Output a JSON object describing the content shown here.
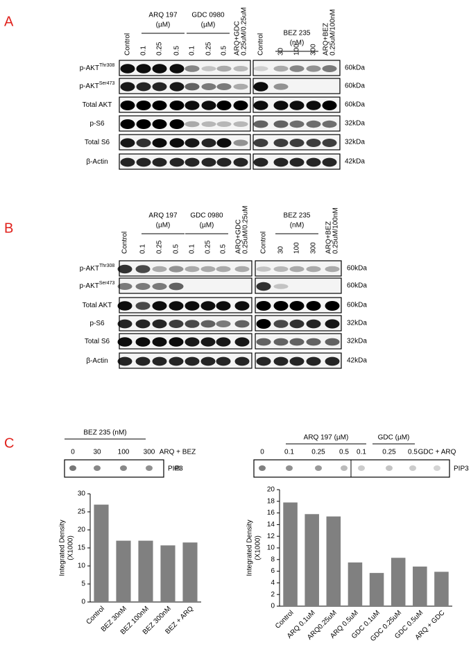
{
  "panel_a": {
    "label": "A",
    "groups": [
      [
        "ARQ 197",
        "(µM)"
      ],
      [
        "GDC 0980",
        "(µM)"
      ],
      [
        "BEZ 235",
        "(nM)"
      ]
    ],
    "columns": [
      [
        "Control"
      ],
      [
        "0.1"
      ],
      [
        "0.25"
      ],
      [
        "0.5"
      ],
      [
        "0.1"
      ],
      [
        "0.25"
      ],
      [
        "0.5"
      ],
      [
        "ARQ+GDC",
        "0.25uM/0.25uM"
      ],
      [
        "Control"
      ],
      [
        "30"
      ],
      [
        "100"
      ],
      [
        "300"
      ],
      [
        "ARQ+BEZ",
        "0.25uM/100nM"
      ]
    ],
    "rows": [
      {
        "name": "p-AKT",
        "sup": "Thr308",
        "size": "60kDa"
      },
      {
        "name": "p-AKT",
        "sup": "Ser473",
        "size": "60kDa"
      },
      {
        "name": "Total AKT",
        "size": "60kDa"
      },
      {
        "name": "p-S6",
        "size": "32kDa"
      },
      {
        "name": "Total S6",
        "size": "32kDa"
      },
      {
        "name": "β-Actin",
        "size": "42kDa"
      }
    ]
  },
  "panel_b": {
    "label": "B",
    "groups": [
      [
        "ARQ 197",
        "(µM)"
      ],
      [
        "GDC 0980",
        "(µM)"
      ],
      [
        "BEZ 235",
        "(nM)"
      ]
    ],
    "columns": [
      [
        "Control"
      ],
      [
        "0.1"
      ],
      [
        "0.25"
      ],
      [
        "0.5"
      ],
      [
        "0.1"
      ],
      [
        "0.25"
      ],
      [
        "0.5"
      ],
      [
        "ARQ+GDC",
        "0.25uM/0.25uM"
      ],
      [
        "Control"
      ],
      [
        "30"
      ],
      [
        "100"
      ],
      [
        "300"
      ],
      [
        "ARQ+BEZ",
        "0.25uM/100nM"
      ]
    ],
    "rows": [
      {
        "name": "p-AKT",
        "sup": "Thr308",
        "size": "60kDa"
      },
      {
        "name": "p-AKT",
        "sup": "Ser473",
        "size": "60kDa"
      },
      {
        "name": "Total AKT",
        "size": "60kDa"
      },
      {
        "name": "p-S6",
        "size": "32kDa"
      },
      {
        "name": "Total S6",
        "size": "32kDa"
      },
      {
        "name": "β-Actin",
        "size": "42kDa"
      }
    ]
  },
  "panel_c": {
    "label": "C",
    "left": {
      "headers": [
        "BEZ 235 (nM)"
      ],
      "lanes": [
        "0",
        "30",
        "100",
        "300",
        "ARQ + BEZ"
      ],
      "marker": "PIP3"
    },
    "right": {
      "headers": [
        "ARQ 197  (µM)",
        "GDC  (µM)"
      ],
      "lanes": [
        "0",
        "0.1",
        "0.25",
        "0.5",
        "0.1",
        "0.25",
        "0.5",
        "GDC + ARQ"
      ],
      "marker": "PIP3"
    }
  },
  "chart_data": [
    {
      "type": "bar",
      "ylabel": [
        "Integrated Density",
        "(X1000)"
      ],
      "categories": [
        "Control",
        "BEZ 30nM",
        "BEZ 100nM",
        "BEZ 300nM",
        "BEZ + ARQ"
      ],
      "values": [
        27,
        17,
        17,
        15.7,
        16.5
      ],
      "color": "#808080",
      "ylim": [
        0,
        30
      ],
      "yticks": [
        0,
        5,
        10,
        15,
        20,
        25,
        30
      ]
    },
    {
      "type": "bar",
      "ylabel": [
        "Integrated Density",
        "(X1000)"
      ],
      "categories": [
        "Control",
        "ARQ 0.1uM",
        "ARQ0.25uM",
        "ARQ 0.5uM",
        "GDC 0.1uM",
        "GDC 0.25uM",
        "GDC 0.5uM",
        "ARQ + GDC"
      ],
      "values": [
        17.8,
        15.8,
        15.4,
        7.5,
        5.7,
        8.3,
        6.8,
        5.9
      ],
      "color": "#808080",
      "ylim": [
        0,
        20
      ],
      "yticks": [
        0,
        2,
        4,
        6,
        8,
        10,
        12,
        14,
        16,
        18,
        20
      ]
    }
  ]
}
